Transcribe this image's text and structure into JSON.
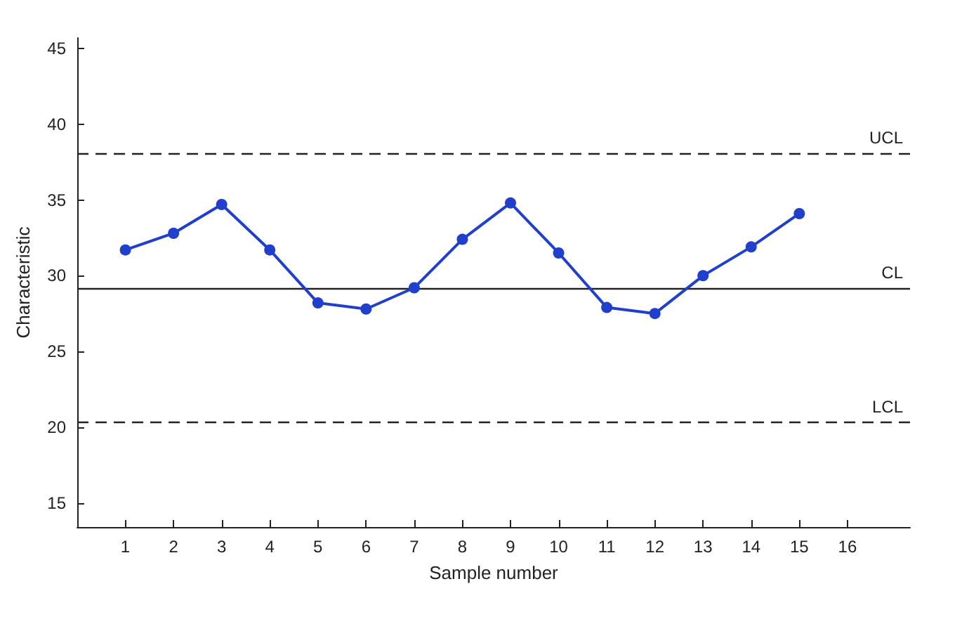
{
  "chart_data": {
    "type": "line",
    "xlabel": "Sample number",
    "ylabel": "Characteristic",
    "x": [
      1,
      2,
      3,
      4,
      5,
      6,
      7,
      8,
      9,
      10,
      11,
      12,
      13,
      14,
      15
    ],
    "series": [
      {
        "color": "#1f3fcc",
        "values": [
          31.7,
          32.8,
          34.7,
          31.7,
          28.2,
          27.8,
          29.2,
          32.4,
          34.8,
          31.5,
          27.9,
          27.5,
          30.0,
          31.9,
          34.1
        ]
      }
    ],
    "xlim": [
      0,
      17.3
    ],
    "xticks": [
      1,
      2,
      3,
      4,
      5,
      6,
      7,
      8,
      9,
      10,
      11,
      12,
      13,
      14,
      15,
      16
    ],
    "ylim": [
      13.4,
      45.7
    ],
    "yticks": [
      15,
      20,
      25,
      30,
      35,
      40,
      45
    ],
    "ref_lines": [
      {
        "axis": "y",
        "value": 38.1,
        "label": "UCL",
        "line_style": "dashed"
      },
      {
        "axis": "y",
        "value": 29.2,
        "label": "CL",
        "line_style": "solid"
      },
      {
        "axis": "y",
        "value": 20.3,
        "label": "LCL",
        "line_style": "dashed"
      }
    ],
    "marker": "circle",
    "line_style": "solid",
    "grid": false
  }
}
